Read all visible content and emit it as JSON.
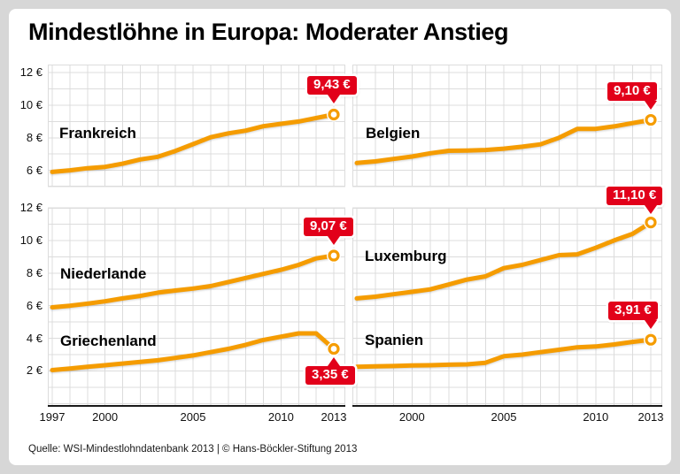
{
  "page": {
    "title": "Mindestlöhne in Europa: Moderater Anstieg",
    "footer": "Quelle: WSI-Mindestlohndatenbank 2013 | © Hans-Böckler-Stiftung 2013"
  },
  "colors": {
    "line_orange": "#F59C00",
    "label_red": "#E2001A",
    "label_text": "#FFFFFF",
    "grid": "#DCDCDC",
    "axis": "#1A1A1A",
    "page_bg": "#D7D7D7",
    "card_bg": "#FFFFFF"
  },
  "chart_data": [
    {
      "type": "line",
      "position": "top-left",
      "x": [
        1997,
        1998,
        1999,
        2000,
        2001,
        2002,
        2003,
        2004,
        2005,
        2006,
        2007,
        2008,
        2009,
        2010,
        2011,
        2012,
        2013
      ],
      "xticks": [
        "1997",
        "2000",
        "2005",
        "2010",
        "2013"
      ],
      "ylim": [
        5.0,
        12.5
      ],
      "yticks": [
        {
          "v": 12,
          "label": "12 €"
        },
        {
          "v": 10,
          "label": "10 €"
        },
        {
          "v": 8,
          "label": "8 €"
        },
        {
          "v": 6,
          "label": "6 €"
        }
      ],
      "unit": "EUR per hour",
      "series": [
        {
          "name": "Frankreich",
          "values": [
            5.9,
            6.0,
            6.13,
            6.21,
            6.41,
            6.67,
            6.83,
            7.19,
            7.61,
            8.03,
            8.27,
            8.44,
            8.71,
            8.86,
            9.0,
            9.22,
            9.43
          ],
          "end_label": "9,43 €",
          "end_label_position": "above"
        }
      ]
    },
    {
      "type": "line",
      "position": "top-right",
      "x": [
        1997,
        1998,
        1999,
        2000,
        2001,
        2002,
        2003,
        2004,
        2005,
        2006,
        2007,
        2008,
        2009,
        2010,
        2011,
        2012,
        2013
      ],
      "xticks": [
        "2000",
        "2005",
        "2010",
        "2013"
      ],
      "ylim": [
        5.0,
        12.5
      ],
      "yticks": [],
      "unit": "EUR per hour",
      "series": [
        {
          "name": "Belgien",
          "values": [
            6.45,
            6.55,
            6.7,
            6.85,
            7.05,
            7.2,
            7.22,
            7.25,
            7.33,
            7.45,
            7.6,
            8.0,
            8.55,
            8.55,
            8.7,
            8.9,
            9.1
          ],
          "end_label": "9,10 €",
          "end_label_position": "above"
        }
      ]
    },
    {
      "type": "line",
      "position": "bottom-left",
      "x": [
        1997,
        1998,
        1999,
        2000,
        2001,
        2002,
        2003,
        2004,
        2005,
        2006,
        2007,
        2008,
        2009,
        2010,
        2011,
        2012,
        2013
      ],
      "xticks": [
        "1997",
        "2000",
        "2005",
        "2010",
        "2013"
      ],
      "ylim": [
        -0.2,
        12.0
      ],
      "yticks": [
        {
          "v": 12,
          "label": "12 €"
        },
        {
          "v": 10,
          "label": "10 €"
        },
        {
          "v": 8,
          "label": "8 €"
        },
        {
          "v": 6,
          "label": "6 €"
        },
        {
          "v": 4,
          "label": "4 €"
        },
        {
          "v": 2,
          "label": "2 €"
        }
      ],
      "unit": "EUR per hour",
      "series": [
        {
          "name": "Niederlande",
          "values": [
            5.9,
            6.0,
            6.12,
            6.27,
            6.45,
            6.6,
            6.8,
            6.93,
            7.05,
            7.2,
            7.45,
            7.7,
            7.95,
            8.2,
            8.5,
            8.9,
            9.07
          ],
          "end_label": "9,07 €",
          "end_label_position": "above"
        },
        {
          "name": "Griechenland",
          "values": [
            2.05,
            2.15,
            2.25,
            2.35,
            2.45,
            2.55,
            2.65,
            2.8,
            2.95,
            3.15,
            3.35,
            3.6,
            3.9,
            4.1,
            4.3,
            4.3,
            3.35
          ],
          "end_label": "3,35 €",
          "end_label_position": "below"
        }
      ]
    },
    {
      "type": "line",
      "position": "bottom-right",
      "x": [
        1997,
        1998,
        1999,
        2000,
        2001,
        2002,
        2003,
        2004,
        2005,
        2006,
        2007,
        2008,
        2009,
        2010,
        2011,
        2012,
        2013
      ],
      "xticks": [
        "2000",
        "2005",
        "2010",
        "2013"
      ],
      "ylim": [
        -0.2,
        12.0
      ],
      "yticks": [],
      "unit": "EUR per hour",
      "series": [
        {
          "name": "Luxemburg",
          "values": [
            6.45,
            6.55,
            6.7,
            6.85,
            7.0,
            7.3,
            7.6,
            7.8,
            8.3,
            8.5,
            8.8,
            9.1,
            9.15,
            9.55,
            10.0,
            10.4,
            11.1
          ],
          "end_label": "11,10 €",
          "end_label_position": "above"
        },
        {
          "name": "Spanien",
          "values": [
            2.25,
            2.28,
            2.3,
            2.33,
            2.35,
            2.38,
            2.4,
            2.5,
            2.9,
            3.0,
            3.15,
            3.3,
            3.45,
            3.5,
            3.62,
            3.78,
            3.91
          ],
          "end_label": "3,91 €",
          "end_label_position": "above"
        }
      ]
    }
  ]
}
